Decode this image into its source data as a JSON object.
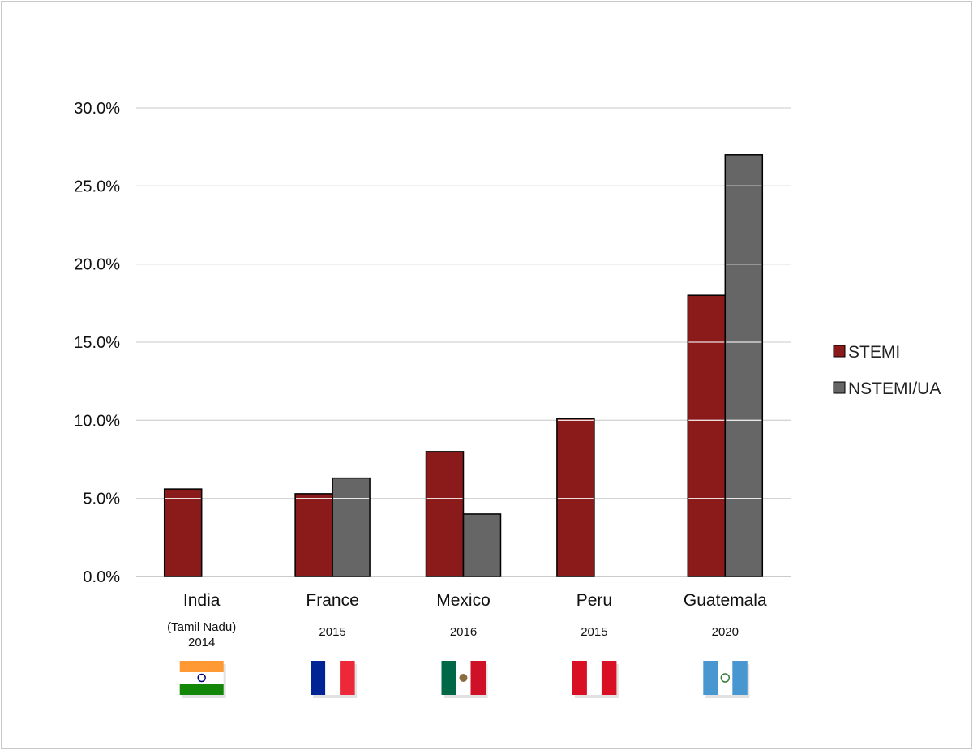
{
  "chart_data": {
    "type": "bar",
    "title": "",
    "xlabel": "",
    "ylabel": "",
    "ylim": [
      0,
      0.3
    ],
    "y_ticks": [
      "0.0%",
      "5.0%",
      "10.0%",
      "15.0%",
      "20.0%",
      "25.0%",
      "30.0%"
    ],
    "grid": true,
    "legend_position": "right",
    "categories": [
      "India",
      "France",
      "Mexico",
      "Peru",
      "Guatemala"
    ],
    "category_notes": [
      [
        "(Tamil Nadu)",
        "2014"
      ],
      [
        "2015"
      ],
      [
        "2016"
      ],
      [
        "2015"
      ],
      [
        "2020"
      ]
    ],
    "flags": [
      "india-flag",
      "france-flag",
      "mexico-flag",
      "peru-flag",
      "guatemala-flag"
    ],
    "series": [
      {
        "name": "STEMI",
        "color": "#8b1a1a",
        "values": [
          0.056,
          0.053,
          0.08,
          0.101,
          0.18
        ]
      },
      {
        "name": "NSTEMI/UA",
        "color": "#666666",
        "values": [
          null,
          0.063,
          0.04,
          null,
          0.27
        ]
      }
    ]
  }
}
